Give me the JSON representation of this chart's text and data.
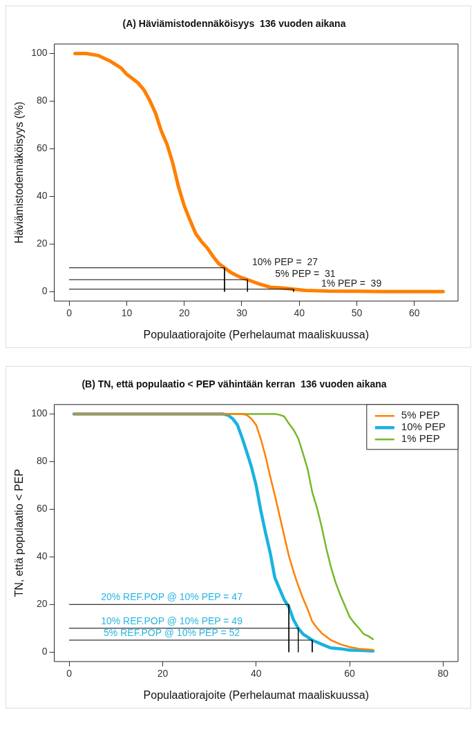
{
  "chart_data": [
    {
      "type": "line",
      "title": "(A) Häviämistodennäköisyys  136 vuoden aikana",
      "xlabel": "Populaatiorajoite (Perhelaumat maaliskuussa)",
      "ylabel": "Häviämistodennäköisyys (%)",
      "xlim": [
        -2.6,
        67.6
      ],
      "ylim": [
        -4,
        104
      ],
      "xticks": [
        0,
        10,
        20,
        30,
        40,
        50,
        60
      ],
      "yticks": [
        0,
        20,
        40,
        60,
        80,
        100
      ],
      "grid": false,
      "legend": false,
      "series": [
        {
          "color": "#ff8000",
          "x": [
            1,
            3,
            5,
            7,
            9,
            10,
            12,
            13,
            14,
            15,
            16,
            17,
            18,
            19,
            20,
            21,
            22,
            23,
            24,
            25,
            26,
            27,
            28,
            29,
            30,
            31,
            33,
            35,
            37,
            39,
            41,
            45,
            50,
            55,
            65
          ],
          "values": [
            100,
            100,
            99.2,
            97,
            94,
            91.3,
            87.6,
            84.7,
            80.3,
            75,
            67.5,
            61.9,
            54,
            44,
            36,
            30,
            24.3,
            21,
            18.3,
            14.8,
            11.7,
            10,
            8.2,
            6.9,
            5.8,
            5,
            3.2,
            1.8,
            1.5,
            1,
            0.5,
            0.2,
            0.1,
            0,
            0
          ]
        },
        {
          "color": "#000000",
          "x": [
            0,
            27,
            27
          ],
          "values": [
            10,
            10,
            0
          ]
        },
        {
          "color": "#000000",
          "x": [
            0,
            31,
            31
          ],
          "values": [
            5,
            5,
            0
          ]
        },
        {
          "color": "#000000",
          "x": [
            0,
            39,
            39
          ],
          "values": [
            1,
            1,
            0
          ]
        }
      ],
      "annotations": [
        {
          "text": "10% PEP =  27",
          "x": 27,
          "y": 10
        },
        {
          "text": "5% PEP =  31",
          "x": 31,
          "y": 5
        },
        {
          "text": "1% PEP =  39",
          "x": 39,
          "y": 1
        }
      ]
    },
    {
      "type": "line",
      "title": "(B) TN, että populaatio < PEP vähintään kerran  136 vuoden aikana",
      "xlabel": "Populaatiorajoite (Perhelaumat maaliskuussa)",
      "ylabel": "TN, että populaatio < PEP",
      "xlim": [
        -3.2,
        83.2
      ],
      "ylim": [
        -4,
        104
      ],
      "xticks": [
        0,
        20,
        40,
        60,
        80
      ],
      "yticks": [
        0,
        20,
        40,
        60,
        80,
        100
      ],
      "grid": false,
      "legend": "top right",
      "series": [
        {
          "name": "5% PEP",
          "color": "#ff8000",
          "x": [
            1,
            37,
            38,
            39,
            40,
            41,
            42,
            43,
            44,
            45,
            46,
            47,
            48,
            49,
            50,
            51,
            52,
            53,
            54,
            56,
            58,
            60,
            62,
            65
          ],
          "values": [
            100,
            100,
            99.6,
            98,
            95.4,
            89.5,
            82.3,
            73.8,
            65.9,
            57.4,
            48.9,
            40.4,
            33.8,
            27.9,
            22.7,
            18.1,
            12.8,
            10.2,
            8,
            5,
            3.3,
            2.1,
            1.4,
            0.9
          ]
        },
        {
          "name": "10% PEP",
          "color": "#1ab2e0",
          "x": [
            1,
            33,
            34,
            35,
            36,
            37,
            38,
            39,
            40,
            41,
            42,
            43,
            44,
            45,
            46,
            47,
            48,
            49,
            50,
            52,
            54,
            56,
            58,
            60,
            62,
            65
          ],
          "values": [
            100,
            100,
            99.5,
            98,
            95.4,
            90,
            84,
            77.7,
            70,
            59.4,
            50.2,
            41.7,
            31.2,
            26.6,
            22,
            19,
            13.5,
            10,
            7.6,
            5,
            3.3,
            1.7,
            1.4,
            0.8,
            0.7,
            0.4
          ]
        },
        {
          "name": "1% PEP",
          "color": "#77b82a",
          "x": [
            1,
            44,
            45,
            46,
            47,
            48,
            49,
            50,
            51,
            52,
            53,
            54,
            55,
            56,
            57,
            58,
            59,
            60,
            61,
            62,
            63,
            64,
            65
          ],
          "values": [
            100,
            100,
            99.7,
            99,
            96,
            93.4,
            89.8,
            83.6,
            77,
            67.2,
            60.7,
            52.8,
            43.6,
            35.8,
            29.2,
            24,
            19.4,
            14.8,
            12.2,
            10,
            7.6,
            6.7,
            5.4
          ]
        },
        {
          "color": "#000000",
          "x": [
            0,
            47,
            47
          ],
          "values": [
            20,
            20,
            0
          ]
        },
        {
          "color": "#000000",
          "x": [
            0,
            49,
            49
          ],
          "values": [
            10,
            10,
            0
          ]
        },
        {
          "color": "#000000",
          "x": [
            0,
            52,
            52
          ],
          "values": [
            5,
            5,
            0
          ]
        }
      ],
      "annotations": [
        "20% REF.POP @ 10% PEP = 47",
        "10% REF.POP @ 10% PEP = 49",
        "5% REF.POP @ 10% PEP = 52"
      ]
    }
  ]
}
